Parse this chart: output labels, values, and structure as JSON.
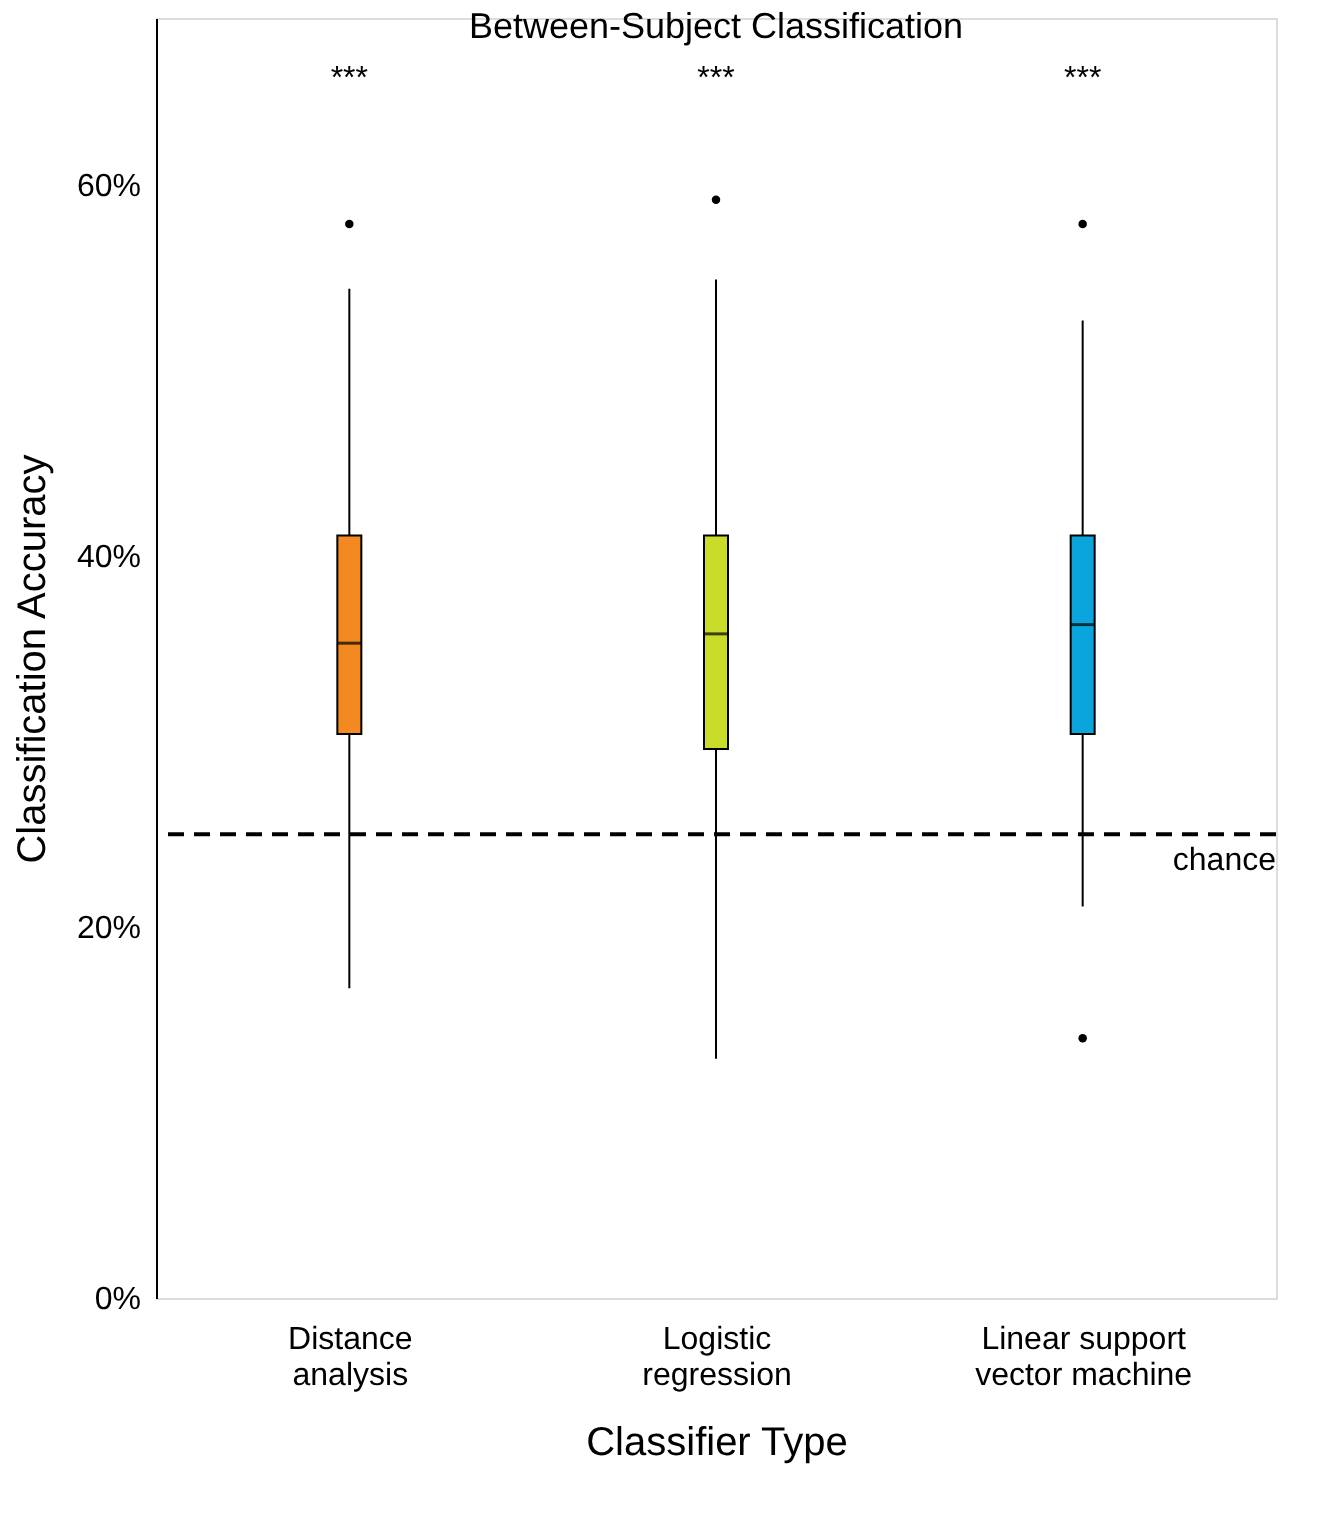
{
  "chart_data": {
    "type": "box",
    "title": "Between-Subject Classification",
    "xlabel": "Classifier Type",
    "ylabel": "Classification Accuracy",
    "categories": [
      "Distance\nanalysis",
      "Logistic\nregression",
      "Linear support\nvector machine"
    ],
    "colors": [
      "#f28a21",
      "#c9dc2a",
      "#0aa5dc"
    ],
    "boxes": [
      {
        "low": 16.7,
        "q1": 30.4,
        "median": 35.3,
        "q3": 41.1,
        "high": 54.4,
        "outliers": [
          57.9
        ]
      },
      {
        "low": 12.9,
        "q1": 29.6,
        "median": 35.8,
        "q3": 41.1,
        "high": 54.9,
        "outliers": [
          59.2
        ]
      },
      {
        "low": 21.1,
        "q1": 30.4,
        "median": 36.3,
        "q3": 41.1,
        "high": 52.7,
        "outliers": [
          57.9,
          14.0
        ]
      }
    ],
    "ylim": [
      0,
      69
    ],
    "yticks": [
      {
        "value": 0,
        "label": "0%"
      },
      {
        "value": 20,
        "label": "20%"
      },
      {
        "value": 40,
        "label": "40%"
      },
      {
        "value": 60,
        "label": "60%"
      }
    ],
    "ref_lines": [
      {
        "axis": "y",
        "value": 25,
        "label": "chance",
        "color": "#000000",
        "line_style": "dashed"
      }
    ],
    "annotations": [
      "***",
      "***",
      "***"
    ],
    "grid": false
  }
}
